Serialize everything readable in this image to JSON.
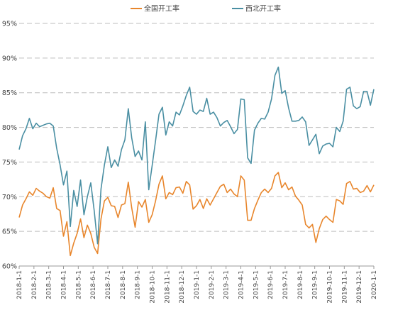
{
  "chart_data": {
    "type": "line",
    "title": "",
    "xlabel": "",
    "ylabel": "",
    "ylim": [
      60,
      95
    ],
    "y_ticks": [
      "60%",
      "65%",
      "70%",
      "75%",
      "80%",
      "85%",
      "90%",
      "95%"
    ],
    "grid": true,
    "legend_position": "top",
    "x_tick_labels": [
      "2018-1-1",
      "2018-2-1",
      "2018-3-1",
      "2018-4-1",
      "2018-5-1",
      "2018-6-1",
      "2018-7-1",
      "2018-8-1",
      "2018-9-1",
      "2018-10-1",
      "2018-11-1",
      "2018-12-1",
      "2019-1-1",
      "2019-2-1",
      "2019-3-1",
      "2019-4-1",
      "2019-5-1",
      "2019-6-1",
      "2019-7-1",
      "2019-8-1",
      "2019-9-1",
      "2019-10-1",
      "2019-11-1",
      "2019-12-1",
      "2020-1-1"
    ],
    "series": [
      {
        "name": "全国开工率",
        "color": "#e8862c",
        "values": [
          67.0,
          68.8,
          69.7,
          70.7,
          70.2,
          71.2,
          70.8,
          70.5,
          70.0,
          69.8,
          71.3,
          68.3,
          68.0,
          64.3,
          66.4,
          61.5,
          63.3,
          64.7,
          66.8,
          64.1,
          65.9,
          64.7,
          62.7,
          61.8,
          66.8,
          69.4,
          69.9,
          68.7,
          68.6,
          67.0,
          68.8,
          69.0,
          72.1,
          68.4,
          65.6,
          69.3,
          68.5,
          69.6,
          66.3,
          67.4,
          69.4,
          71.8,
          73.0,
          69.7,
          70.6,
          70.3,
          71.3,
          71.4,
          70.5,
          72.2,
          71.7,
          68.2,
          68.7,
          69.6,
          68.3,
          69.7,
          68.8,
          69.7,
          70.6,
          71.5,
          71.8,
          70.6,
          71.1,
          70.4,
          70.0,
          73.0,
          72.4,
          66.6,
          66.6,
          68.3,
          69.5,
          70.6,
          71.1,
          70.6,
          71.2,
          73.0,
          73.5,
          71.3,
          72.0,
          71.0,
          71.4,
          70.1,
          69.5,
          68.8,
          66.0,
          65.5,
          66.0,
          63.4,
          65.4,
          66.7,
          67.2,
          66.7,
          66.3,
          69.6,
          69.4,
          68.9,
          71.9,
          72.2,
          71.1,
          71.2,
          70.6,
          70.8,
          71.6,
          70.7,
          71.7
        ]
      },
      {
        "name": "西北开工率",
        "color": "#4a8fa3",
        "values": [
          76.8,
          78.8,
          79.8,
          81.3,
          79.8,
          80.6,
          80.1,
          80.3,
          80.5,
          80.6,
          80.2,
          77.0,
          74.6,
          71.7,
          73.7,
          65.7,
          70.9,
          68.6,
          72.4,
          67.4,
          70.0,
          72.0,
          68.0,
          63.2,
          71.1,
          74.6,
          77.2,
          74.2,
          75.3,
          74.4,
          76.8,
          78.2,
          82.7,
          78.5,
          75.8,
          76.6,
          75.3,
          80.8,
          71.0,
          74.5,
          78.1,
          81.9,
          82.9,
          78.9,
          80.8,
          80.2,
          82.2,
          81.8,
          83.1,
          84.6,
          85.8,
          82.3,
          81.9,
          82.5,
          82.3,
          84.2,
          81.9,
          82.2,
          81.4,
          80.2,
          80.7,
          81.0,
          80.1,
          79.1,
          79.7,
          84.1,
          84.0,
          75.6,
          74.8,
          79.6,
          80.6,
          81.3,
          81.2,
          82.2,
          84.1,
          87.5,
          88.7,
          84.9,
          85.3,
          82.8,
          80.9,
          80.9,
          81.0,
          81.5,
          80.8,
          77.4,
          78.2,
          79.0,
          76.2,
          77.3,
          77.6,
          77.7,
          77.2,
          80.0,
          79.4,
          80.9,
          85.5,
          85.8,
          83.1,
          82.7,
          83.0,
          85.2,
          85.2,
          83.2,
          85.5
        ]
      }
    ]
  }
}
